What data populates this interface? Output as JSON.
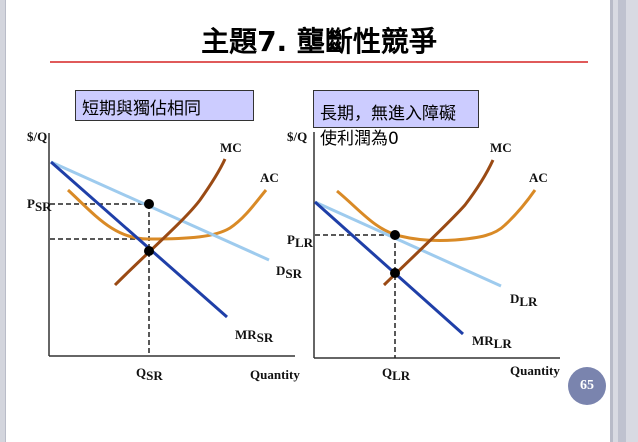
{
  "title": "主題7. 壟斷性競爭",
  "notes": {
    "short_run": "短期與獨佔相同",
    "long_run": "長期，無進入障礙使利潤為0"
  },
  "left_diagram": {
    "y_axis": "$/Q",
    "x_axis": "Quantity",
    "price_label": {
      "main": "P",
      "sub": "SR"
    },
    "quantity_label": {
      "main": "Q",
      "sub": "SR"
    },
    "mc": "MC",
    "ac": "AC",
    "demand": {
      "main": "D",
      "sub": "SR"
    },
    "mr": {
      "main": "MR",
      "sub": "SR"
    }
  },
  "right_diagram": {
    "y_axis": "$/Q",
    "x_axis": "Quantity",
    "price_label": {
      "main": "P",
      "sub": "LR"
    },
    "quantity_label": {
      "main": "Q",
      "sub": "LR"
    },
    "mc": "MC",
    "ac": "AC",
    "demand": {
      "main": "D",
      "sub": "LR"
    },
    "mr": {
      "main": "MR",
      "sub": "LR"
    }
  },
  "colors": {
    "demand": "#9ecbee",
    "mr": "#1f3fa8",
    "mc": "#9a4a14",
    "ac": "#d98a26",
    "note_bg": "#ccccff",
    "title_rule": "#e05a5a",
    "page_badge": "#7a84ae"
  },
  "page_number": "65"
}
